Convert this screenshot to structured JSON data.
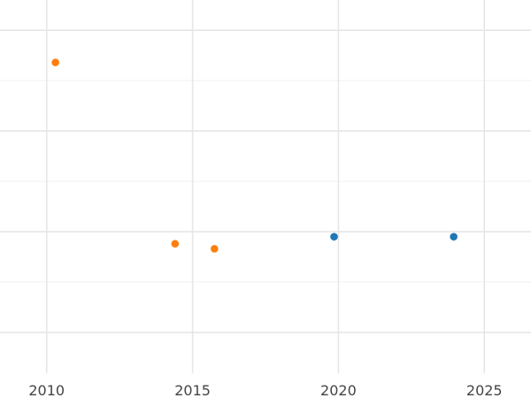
{
  "chart_data": {
    "type": "scatter",
    "title": "",
    "xlabel": "",
    "ylabel": "",
    "x_ticks": [
      2010,
      2015,
      2020,
      2025
    ],
    "y_grid_major": [
      0,
      1,
      2,
      3
    ],
    "y_grid_minor": [
      0.5,
      1.5,
      2.5,
      3.5
    ],
    "xlim": [
      2008.4,
      2026.6
    ],
    "ylim": [
      -0.3,
      3.3
    ],
    "grid": true,
    "series": [
      {
        "color": "#ff7f0e",
        "points": [
          {
            "x": 2010.3,
            "y": 2.68
          },
          {
            "x": 2014.4,
            "y": 0.88
          },
          {
            "x": 2015.75,
            "y": 0.83
          }
        ]
      },
      {
        "color": "#1f77b4",
        "points": [
          {
            "x": 2019.85,
            "y": 0.95
          },
          {
            "x": 2023.95,
            "y": 0.95
          }
        ]
      }
    ]
  }
}
